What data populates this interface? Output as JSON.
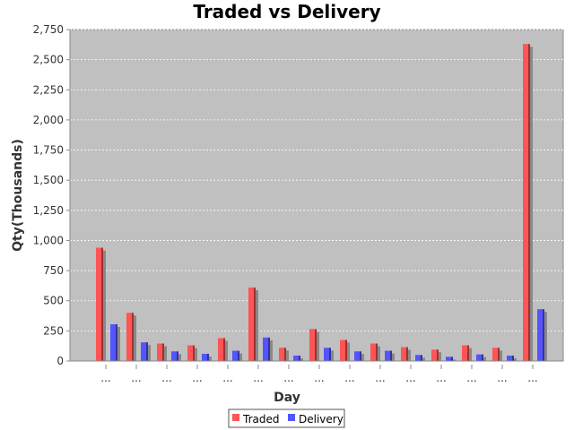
{
  "chart_data": {
    "type": "bar",
    "title": "Traded vs Delivery",
    "xlabel": "Day",
    "ylabel": "Qty(Thousands)",
    "ylim": [
      0,
      2750
    ],
    "yticks": [
      0,
      250,
      500,
      750,
      1000,
      1250,
      1500,
      1750,
      2000,
      2250,
      2500,
      2750
    ],
    "ytick_labels": [
      "0",
      "250",
      "500",
      "750",
      "1,000",
      "1,250",
      "1,500",
      "1,750",
      "2,000",
      "2,250",
      "2,500",
      "2,750"
    ],
    "categories": [
      "...",
      "...",
      "...",
      "...",
      "...",
      "...",
      "...",
      "...",
      "...",
      "...",
      "...",
      "...",
      "...",
      "...",
      "..."
    ],
    "series": [
      {
        "name": "Traded",
        "color": "#ff5555",
        "values": [
          940,
          400,
          145,
          130,
          190,
          610,
          110,
          265,
          175,
          145,
          115,
          95,
          130,
          110,
          2630
        ]
      },
      {
        "name": "Delivery",
        "color": "#5555ff",
        "values": [
          305,
          155,
          80,
          60,
          85,
          195,
          45,
          110,
          80,
          85,
          50,
          35,
          55,
          45,
          430
        ]
      }
    ],
    "grid": true,
    "legend_position": "bottom",
    "colors": {
      "plot_background": "#c0c0c0",
      "gridline": "#ffffff"
    }
  }
}
